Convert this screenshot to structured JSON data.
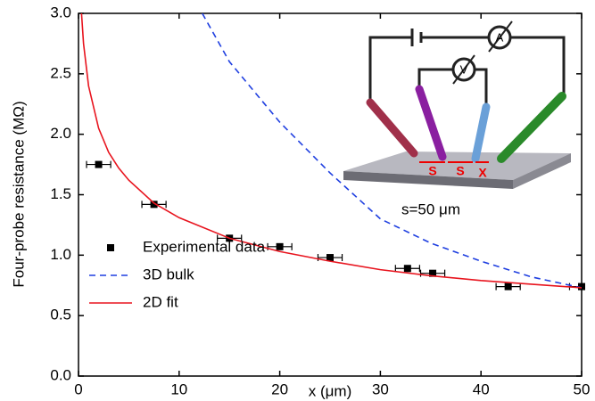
{
  "chart_data": {
    "type": "scatter",
    "x_label": "x (μm)",
    "y_label": "Four-probe resistance (MΩ)",
    "xlim": [
      0,
      50
    ],
    "xticks": [
      0,
      10,
      20,
      30,
      40,
      50
    ],
    "ylim": [
      0,
      3.0
    ],
    "yticks": [
      {
        "value": 0,
        "label": "0.0"
      },
      {
        "value": 0.5,
        "label": "0.5"
      },
      {
        "value": 1,
        "label": "1.0"
      },
      {
        "value": 1.5,
        "label": "1.5"
      },
      {
        "value": 2,
        "label": "2.0"
      },
      {
        "value": 2.5,
        "label": "2.5"
      },
      {
        "value": 3,
        "label": "3.0"
      }
    ],
    "legend": "lower left",
    "series": [
      {
        "name": "Experimental data",
        "style": "marker",
        "color": "#000000",
        "x": [
          2,
          7.5,
          15,
          20,
          25,
          32.7,
          35.2,
          42.7,
          50
        ],
        "values": [
          1.75,
          1.42,
          1.14,
          1.07,
          0.98,
          0.89,
          0.85,
          0.74,
          0.74
        ],
        "xerr": [
          1.2,
          1.2,
          1.2,
          1.2,
          1.2,
          1.2,
          1.2,
          1.2,
          1.2
        ]
      },
      {
        "name": "3D bulk",
        "style": "dashed",
        "color": "#1f3fe0",
        "x": [
          12.3,
          15,
          20,
          25,
          30,
          35,
          40,
          45,
          50
        ],
        "values": [
          3.0,
          2.6,
          2.1,
          1.68,
          1.3,
          1.1,
          0.95,
          0.82,
          0.73
        ]
      },
      {
        "name": "2D fit",
        "style": "solid",
        "color": "#e8141e",
        "x": [
          0.3,
          0.5,
          1,
          2,
          3,
          4,
          5,
          7.5,
          10,
          15,
          20,
          25,
          30,
          35,
          40,
          45,
          50
        ],
        "values": [
          3.0,
          2.75,
          2.4,
          2.05,
          1.85,
          1.72,
          1.62,
          1.43,
          1.31,
          1.14,
          1.03,
          0.95,
          0.88,
          0.83,
          0.79,
          0.76,
          0.73
        ]
      }
    ],
    "annotations": [
      "S",
      "S",
      "X",
      "A",
      "V",
      "s=50 μm"
    ]
  }
}
